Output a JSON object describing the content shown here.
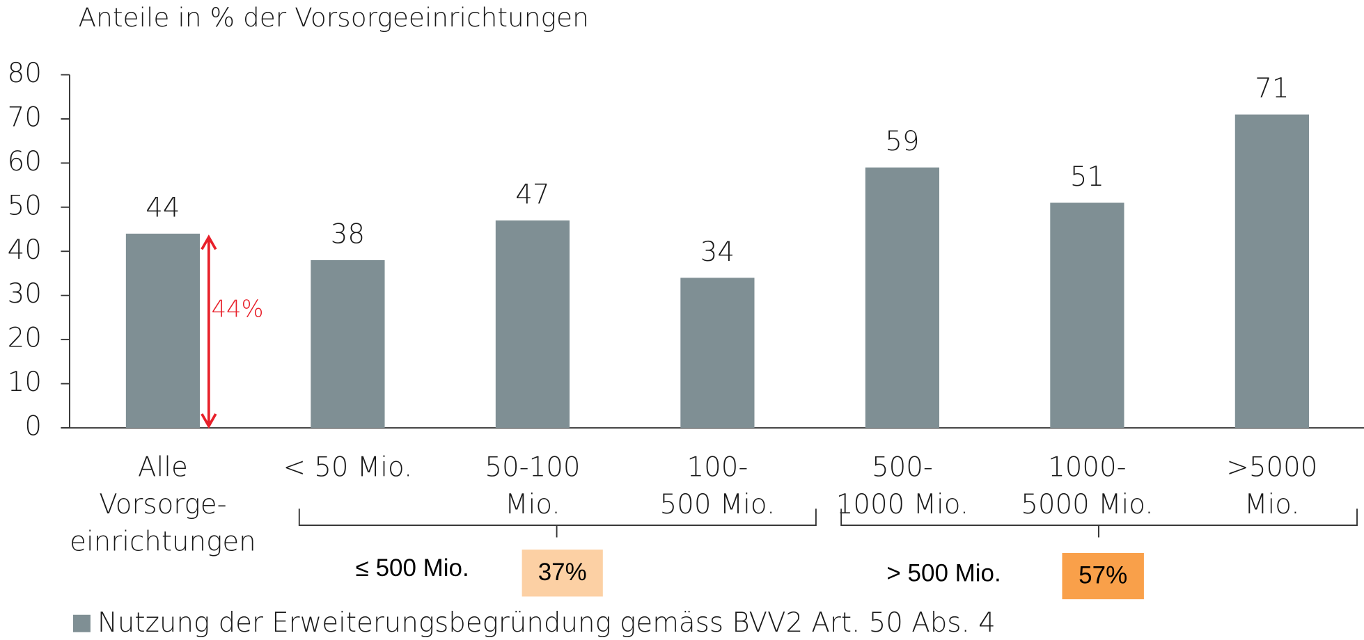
{
  "chart_data": {
    "type": "bar",
    "ylabel": "Anteile in % der Vorsorgeeinrichtungen",
    "categories": [
      [
        "Alle",
        "Vorsorge-",
        "einrichtungen"
      ],
      [
        "< 50 Mio."
      ],
      [
        "50-100",
        "Mio."
      ],
      [
        "100-",
        "500 Mio."
      ],
      [
        "500-",
        "1000 Mio."
      ],
      [
        "1000-",
        "5000 Mio."
      ],
      [
        ">5000",
        "Mio."
      ]
    ],
    "series": [
      {
        "name": "Nutzung der Erweiterungsbegründung gemäss BVV2 Art. 50 Abs. 4",
        "color": "#7f8f94",
        "values": [
          44,
          38,
          47,
          34,
          59,
          51,
          71
        ]
      }
    ],
    "ylim": [
      0,
      80
    ],
    "yticks": [
      0,
      10,
      20,
      30,
      40,
      50,
      60,
      70,
      80
    ],
    "annotations": [
      {
        "text": "44%",
        "color": "#e8202a"
      }
    ],
    "groups": [
      {
        "label": "≤ 500 Mio.",
        "share": "37%",
        "color": "#fcd0a4"
      },
      {
        "label": "> 500 Mio.",
        "share": "57%",
        "color": "#f9a04a"
      }
    ],
    "legend": "bottom-left"
  }
}
